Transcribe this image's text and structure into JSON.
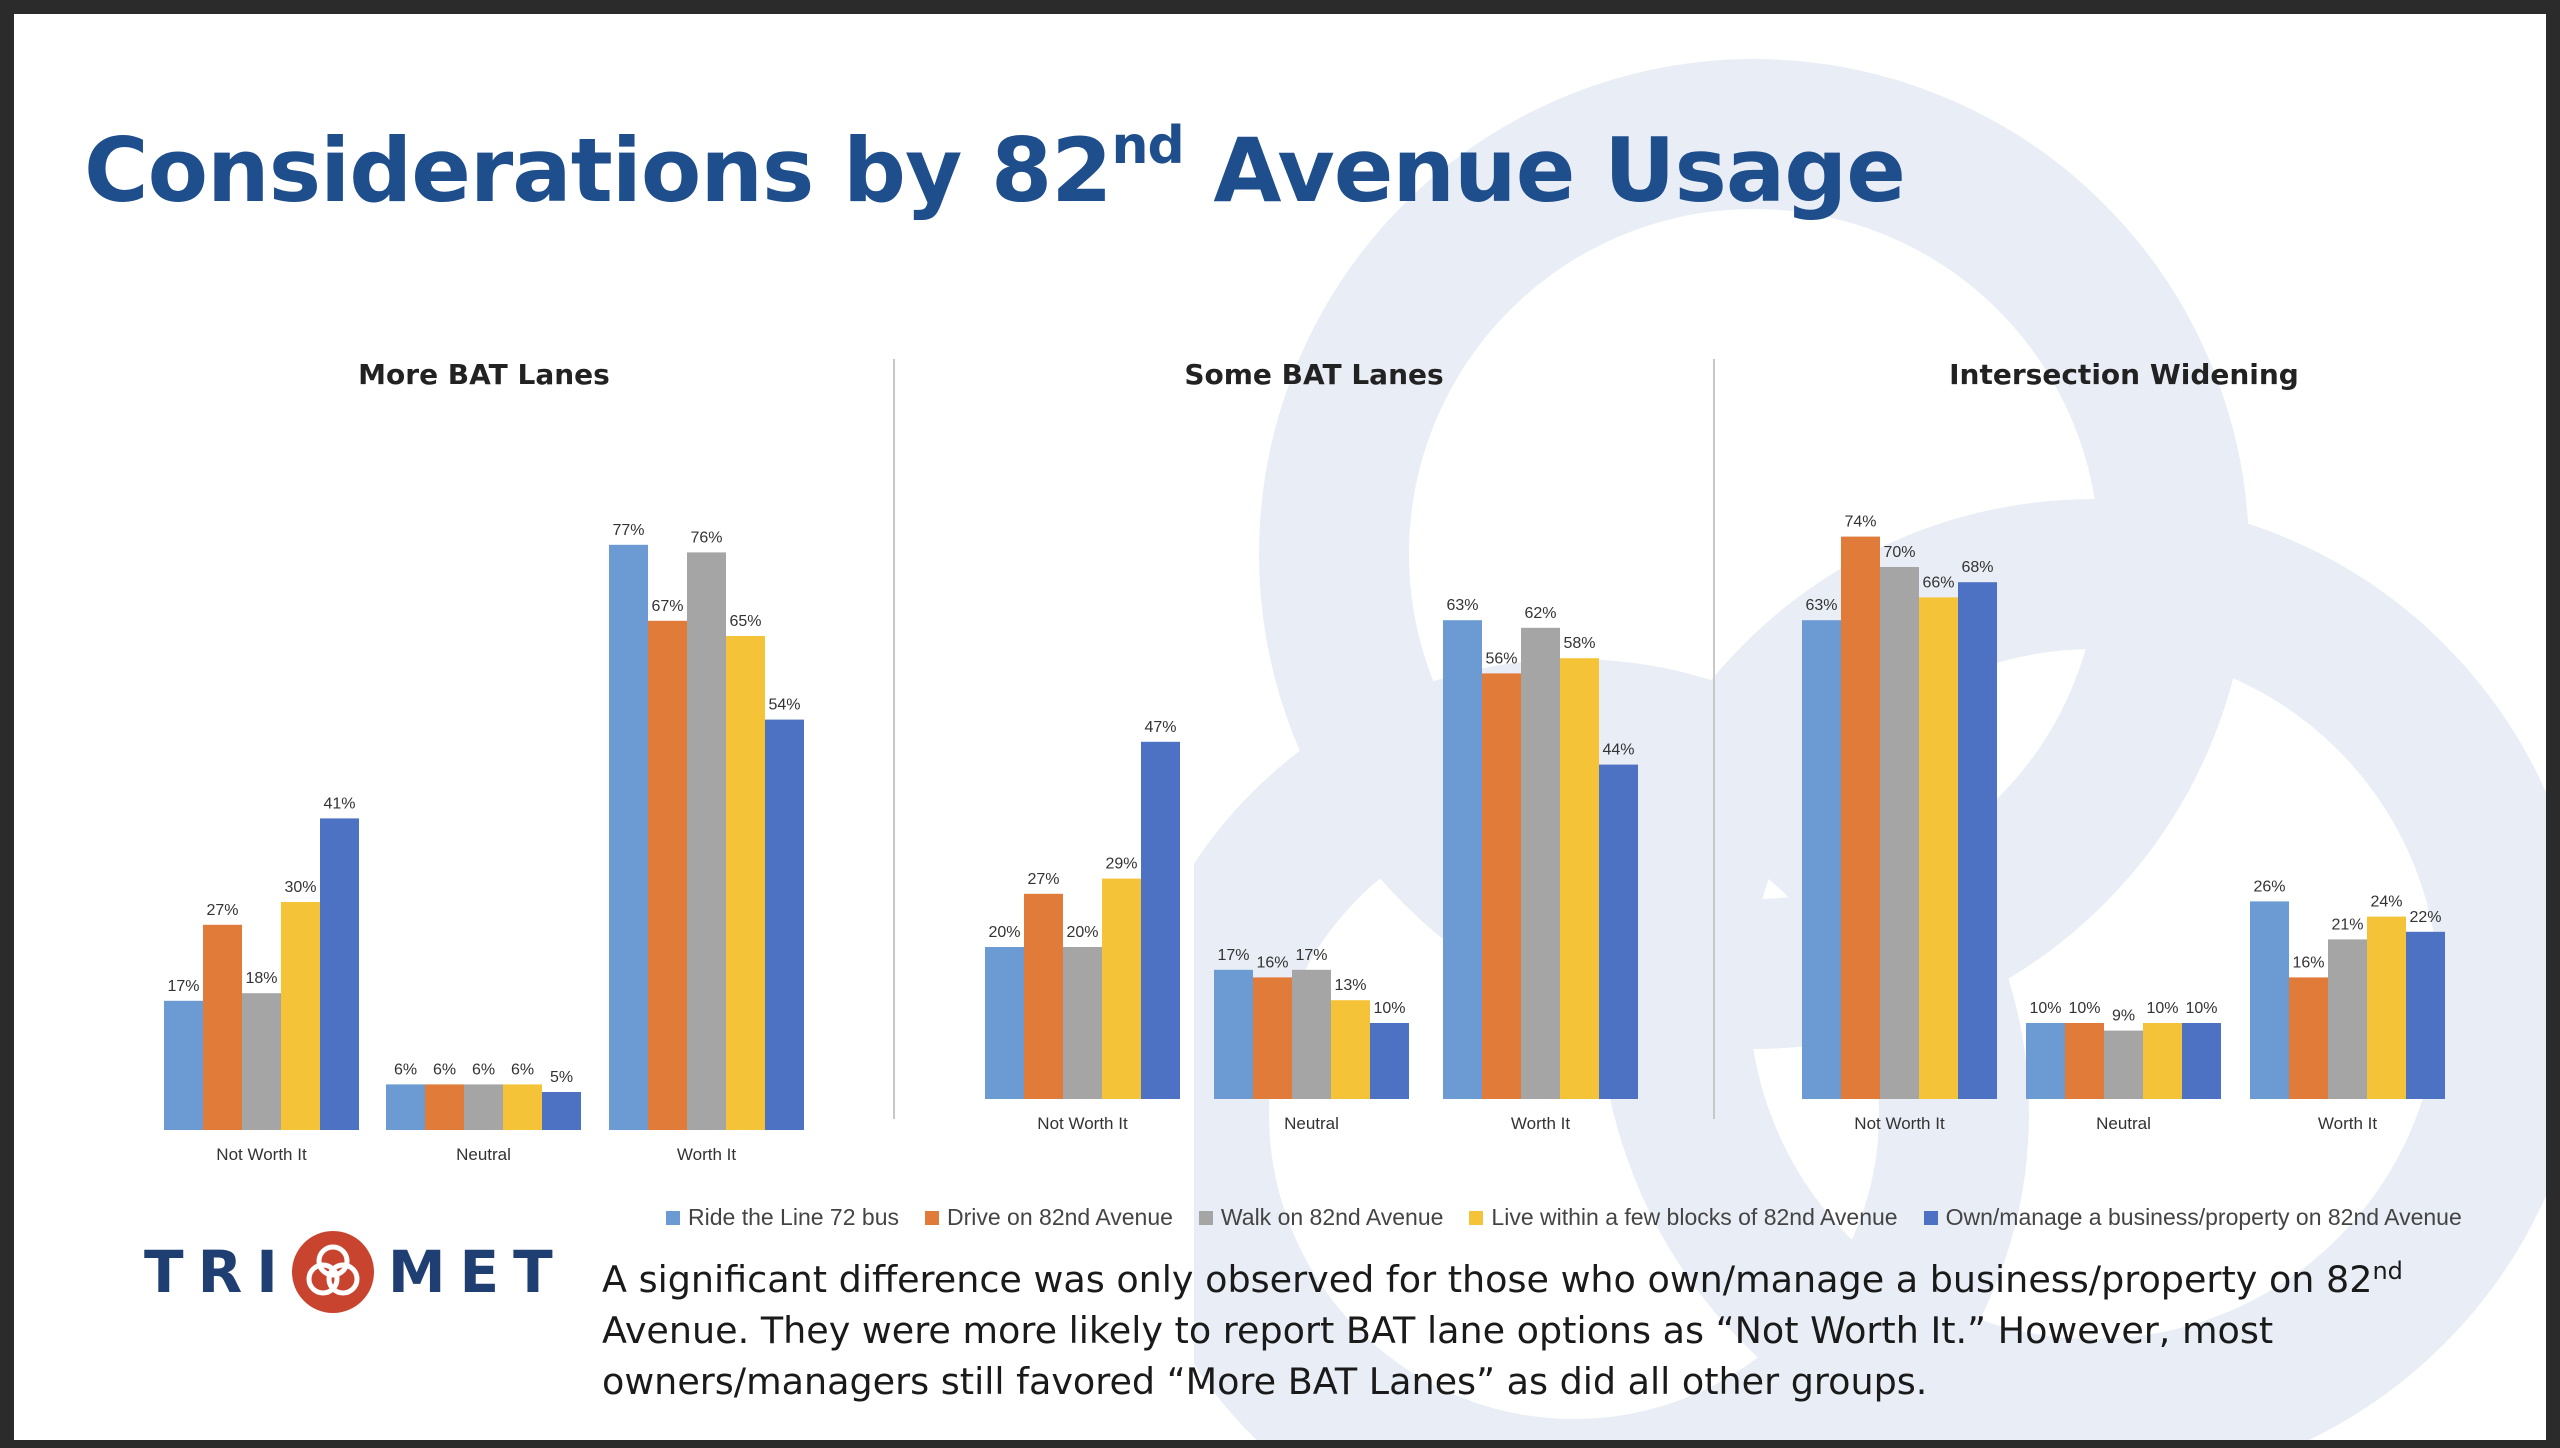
{
  "slide": {
    "title_main": "Considerations by 82",
    "title_sup": "nd",
    "title_rest": " Avenue Usage",
    "footnote_part1": "A significant difference was only observed for those who own/manage a business/property on 82",
    "footnote_sup": "nd",
    "footnote_part2": " Avenue. They were more likely to report BAT lane options as “Not Worth It.” However, most owners/managers still favored “More BAT Lanes” as did all other groups.",
    "logo_left": "TRI",
    "logo_right": "MET",
    "logo_icon": "trimet-swirl-icon"
  },
  "chart_data": [
    {
      "type": "bar",
      "title": "More BAT Lanes",
      "categories": [
        "Not Worth It",
        "Neutral",
        "Worth It"
      ],
      "ylim": [
        0,
        100
      ],
      "series": [
        {
          "name": "Ride the Line 72 bus",
          "values": [
            17,
            6,
            77
          ]
        },
        {
          "name": "Drive on 82nd Avenue",
          "values": [
            27,
            6,
            67
          ]
        },
        {
          "name": "Walk on 82nd Avenue",
          "values": [
            18,
            6,
            76
          ]
        },
        {
          "name": "Live within a few blocks of 82nd Avenue",
          "values": [
            30,
            6,
            65
          ]
        },
        {
          "name": "Own/manage a business/property on 82nd Avenue",
          "values": [
            41,
            5,
            54
          ]
        }
      ]
    },
    {
      "type": "bar",
      "title": "Some BAT Lanes",
      "categories": [
        "Not Worth It",
        "Neutral",
        "Worth It"
      ],
      "ylim": [
        0,
        100
      ],
      "series": [
        {
          "name": "Ride the Line 72 bus",
          "values": [
            20,
            17,
            63
          ]
        },
        {
          "name": "Drive on 82nd Avenue",
          "values": [
            27,
            16,
            56
          ]
        },
        {
          "name": "Walk on 82nd Avenue",
          "values": [
            20,
            17,
            62
          ]
        },
        {
          "name": "Live within a few blocks of 82nd Avenue",
          "values": [
            29,
            13,
            58
          ]
        },
        {
          "name": "Own/manage a business/property on 82nd Avenue",
          "values": [
            47,
            10,
            44
          ]
        }
      ]
    },
    {
      "type": "bar",
      "title": "Intersection Widening",
      "categories": [
        "Not Worth It",
        "Neutral",
        "Worth It"
      ],
      "ylim": [
        0,
        100
      ],
      "series": [
        {
          "name": "Ride the Line 72 bus",
          "values": [
            63,
            10,
            26
          ]
        },
        {
          "name": "Drive on 82nd Avenue",
          "values": [
            74,
            10,
            16
          ]
        },
        {
          "name": "Walk on 82nd Avenue",
          "values": [
            70,
            9,
            21
          ]
        },
        {
          "name": "Live within a few blocks of 82nd Avenue",
          "values": [
            66,
            10,
            24
          ]
        },
        {
          "name": "Own/manage a business/property on 82nd Avenue",
          "values": [
            68,
            10,
            22
          ]
        }
      ]
    }
  ],
  "legend": [
    {
      "label": "Ride the Line 72 bus",
      "color": "#6b9bd2"
    },
    {
      "label": "Drive on 82nd Avenue",
      "color": "#e07b3a"
    },
    {
      "label": "Walk on 82nd Avenue",
      "color": "#a5a5a5"
    },
    {
      "label": "Live within a few blocks of 82nd Avenue",
      "color": "#f5c338"
    },
    {
      "label": "Own/manage a business/property on 82nd Avenue",
      "color": "#4d72c4"
    }
  ],
  "colors": {
    "title": "#1f4e8c",
    "logo_red": "#c8442e",
    "logo_blue": "#1f3f73"
  }
}
